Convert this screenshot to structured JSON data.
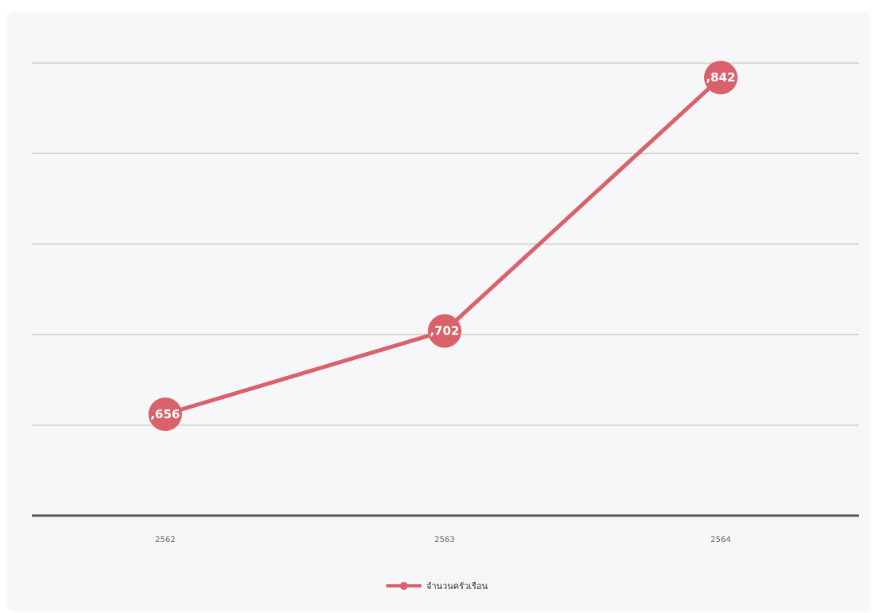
{
  "chart_data": {
    "type": "line",
    "categories": [
      "2562",
      "2563",
      "2564"
    ],
    "series": [
      {
        "name": "จำนวนครัวเรือน",
        "values": [
          5656,
          5702,
          5842
        ],
        "labels": [
          ",656",
          ",702",
          ",842"
        ]
      }
    ],
    "ylim": [
      5600,
      5860
    ],
    "y_gridlines": [
      5600,
      5650,
      5700,
      5750,
      5800,
      5850
    ],
    "grid": true,
    "legend_position": "bottom-center",
    "data_labels": true,
    "colors": {
      "series": "#d9616b",
      "grid": "#cfcfcf",
      "axis": "#555555"
    }
  }
}
